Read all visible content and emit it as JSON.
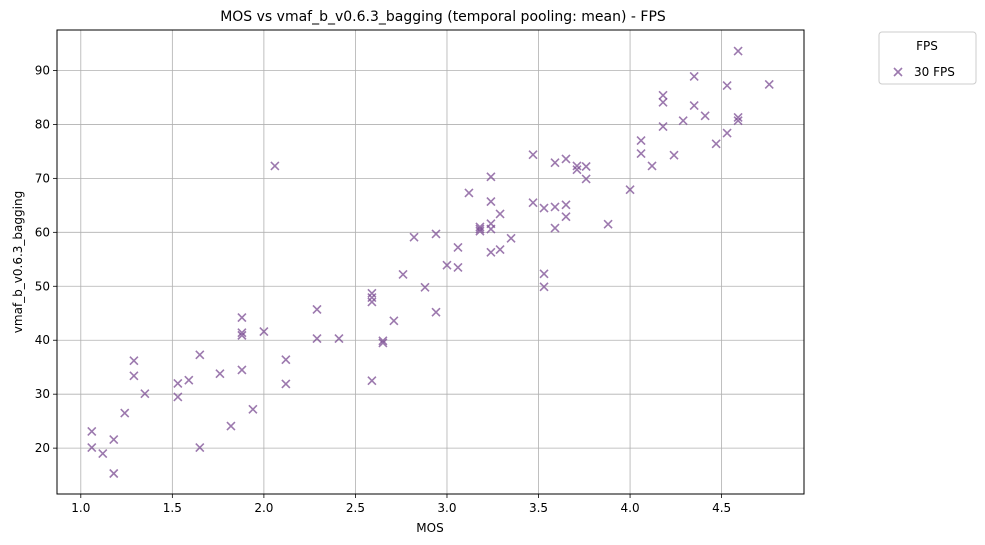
{
  "chart_data": {
    "type": "scatter",
    "title": "MOS vs vmaf_b_v0.6.3_bagging (temporal pooling: mean) - FPS",
    "xlabel": "MOS",
    "ylabel": "vmaf_b_v0.6.3_bagging",
    "xlim": [
      0.87,
      4.95
    ],
    "ylim": [
      11.5,
      97.5
    ],
    "xticks": [
      1.0,
      1.5,
      2.0,
      2.5,
      3.0,
      3.5,
      4.0,
      4.5
    ],
    "xtick_labels": [
      "1.0",
      "1.5",
      "2.0",
      "2.5",
      "3.0",
      "3.5",
      "4.0",
      "4.5"
    ],
    "yticks": [
      20,
      30,
      40,
      50,
      60,
      70,
      80,
      90
    ],
    "ytick_labels": [
      "20",
      "30",
      "40",
      "50",
      "60",
      "70",
      "80",
      "90"
    ],
    "grid": true,
    "legend": {
      "title": "FPS",
      "placement": "outside-top-right"
    },
    "series": [
      {
        "name": "30 FPS",
        "marker": "x",
        "color": "#7b4d93",
        "points": [
          [
            1.06,
            23.1
          ],
          [
            1.06,
            20.1
          ],
          [
            1.12,
            19.0
          ],
          [
            1.18,
            21.6
          ],
          [
            1.18,
            15.3
          ],
          [
            1.24,
            26.5
          ],
          [
            1.29,
            36.2
          ],
          [
            1.29,
            33.4
          ],
          [
            1.35,
            30.1
          ],
          [
            1.53,
            32.0
          ],
          [
            1.53,
            29.5
          ],
          [
            1.59,
            32.6
          ],
          [
            1.65,
            37.3
          ],
          [
            1.65,
            20.1
          ],
          [
            1.76,
            33.8
          ],
          [
            1.82,
            24.1
          ],
          [
            1.88,
            44.2
          ],
          [
            1.88,
            41.4
          ],
          [
            1.88,
            40.9
          ],
          [
            1.88,
            34.5
          ],
          [
            1.94,
            27.2
          ],
          [
            2.0,
            41.6
          ],
          [
            2.06,
            72.3
          ],
          [
            2.12,
            36.4
          ],
          [
            2.12,
            31.9
          ],
          [
            2.29,
            45.7
          ],
          [
            2.29,
            40.3
          ],
          [
            2.41,
            40.3
          ],
          [
            2.59,
            48.7
          ],
          [
            2.59,
            47.9
          ],
          [
            2.59,
            47.1
          ],
          [
            2.59,
            32.5
          ],
          [
            2.65,
            39.9
          ],
          [
            2.65,
            39.5
          ],
          [
            2.71,
            43.6
          ],
          [
            2.76,
            52.2
          ],
          [
            2.82,
            59.1
          ],
          [
            2.88,
            49.8
          ],
          [
            2.94,
            59.7
          ],
          [
            2.94,
            45.2
          ],
          [
            3.0,
            53.9
          ],
          [
            3.06,
            57.2
          ],
          [
            3.06,
            53.5
          ],
          [
            3.12,
            67.3
          ],
          [
            3.18,
            61.0
          ],
          [
            3.18,
            60.6
          ],
          [
            3.18,
            60.2
          ],
          [
            3.24,
            70.3
          ],
          [
            3.24,
            65.7
          ],
          [
            3.24,
            61.6
          ],
          [
            3.24,
            60.6
          ],
          [
            3.24,
            56.3
          ],
          [
            3.29,
            63.4
          ],
          [
            3.29,
            56.8
          ],
          [
            3.35,
            58.9
          ],
          [
            3.47,
            74.4
          ],
          [
            3.47,
            65.5
          ],
          [
            3.53,
            64.5
          ],
          [
            3.53,
            52.3
          ],
          [
            3.53,
            49.9
          ],
          [
            3.59,
            72.9
          ],
          [
            3.59,
            64.7
          ],
          [
            3.59,
            60.8
          ],
          [
            3.65,
            73.6
          ],
          [
            3.65,
            65.1
          ],
          [
            3.65,
            62.9
          ],
          [
            3.71,
            72.3
          ],
          [
            3.71,
            71.6
          ],
          [
            3.76,
            72.2
          ],
          [
            3.76,
            69.9
          ],
          [
            3.88,
            61.5
          ],
          [
            4.0,
            67.9
          ],
          [
            4.06,
            77.0
          ],
          [
            4.06,
            74.6
          ],
          [
            4.12,
            72.3
          ],
          [
            4.18,
            85.4
          ],
          [
            4.18,
            84.1
          ],
          [
            4.18,
            79.6
          ],
          [
            4.24,
            74.3
          ],
          [
            4.29,
            80.7
          ],
          [
            4.35,
            88.9
          ],
          [
            4.35,
            83.5
          ],
          [
            4.41,
            81.6
          ],
          [
            4.47,
            76.4
          ],
          [
            4.53,
            87.2
          ],
          [
            4.53,
            78.4
          ],
          [
            4.59,
            93.6
          ],
          [
            4.59,
            81.3
          ],
          [
            4.59,
            80.7
          ],
          [
            4.76,
            87.4
          ]
        ]
      }
    ]
  }
}
